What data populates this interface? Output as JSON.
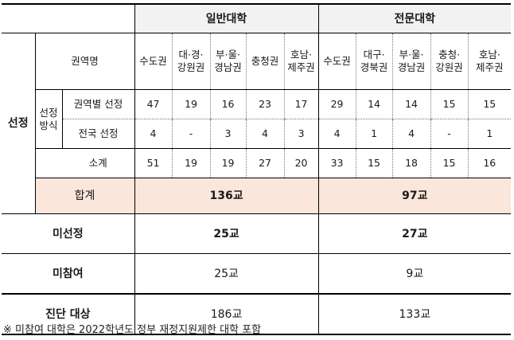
{
  "headers": {
    "general": "일반대학",
    "professional": "전문대학"
  },
  "labels": {
    "selected": "선정",
    "selection_method": "선정\n방식",
    "region_name": "권역명",
    "regional_selection": "권역별 선정",
    "national_selection": "전국 선정",
    "subtotal": "소계",
    "total": "합계",
    "not_selected": "미선정",
    "not_participated": "미참여",
    "diagnosis_target": "진단 대상"
  },
  "regions": {
    "general": [
      "수도권",
      "대·경·\n강원권",
      "부·울·\n경남권",
      "충청권",
      "호남·\n제주권"
    ],
    "professional": [
      "수도권",
      "대구·\n경북권",
      "부·울·\n경남권",
      "충청·\n강원권",
      "호남·\n제주권"
    ]
  },
  "rows": {
    "regional": {
      "general": [
        "47",
        "19",
        "16",
        "23",
        "17"
      ],
      "professional": [
        "29",
        "14",
        "14",
        "15",
        "15"
      ]
    },
    "national": {
      "general": [
        "4",
        "-",
        "3",
        "4",
        "3"
      ],
      "professional": [
        "4",
        "1",
        "4",
        "-",
        "1"
      ]
    },
    "subtotal": {
      "general": [
        "51",
        "19",
        "19",
        "27",
        "20"
      ],
      "professional": [
        "33",
        "15",
        "18",
        "15",
        "16"
      ]
    }
  },
  "totals": {
    "selected": {
      "general": "136교",
      "professional": "97교"
    },
    "not_selected": {
      "general": "25교",
      "professional": "27교"
    },
    "not_participated": {
      "general": "25교",
      "professional": "9교"
    },
    "diagnosis_target": {
      "general": "186교",
      "professional": "133교"
    }
  },
  "footnote": "※ 미참여 대학은 2022학년도 정부 재정지원제한 대학 포함"
}
